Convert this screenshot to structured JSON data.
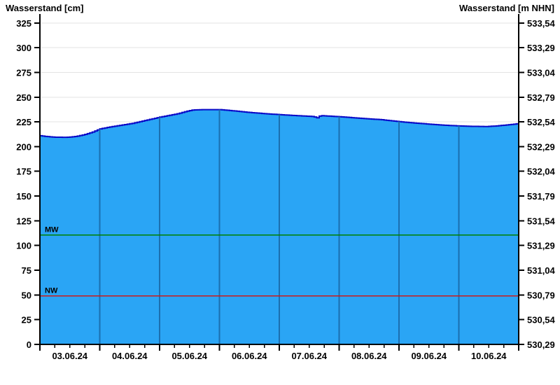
{
  "chart_data": {
    "type": "area",
    "title_left": "Wasserstand [cm]",
    "title_right": "Wasserstand [m NHN]",
    "x_axis": {
      "labels": [
        "03.06.24",
        "04.06.24",
        "05.06.24",
        "06.06.24",
        "07.06.24",
        "08.06.24",
        "09.06.24",
        "10.06.24"
      ],
      "days_shown": 8,
      "minor_ticks_per_day": 3
    },
    "y_left": {
      "label": "Wasserstand [cm]",
      "min": 0,
      "max": 325,
      "tick_step": 25,
      "ticks": [
        0,
        25,
        50,
        75,
        100,
        125,
        150,
        175,
        200,
        225,
        250,
        275,
        300,
        325
      ]
    },
    "y_right": {
      "label": "Wasserstand [m NHN]",
      "ticks": [
        "530,29",
        "530,54",
        "530,79",
        "531,04",
        "531,29",
        "531,54",
        "531,79",
        "532,04",
        "532,29",
        "532,54",
        "532,79",
        "533,04",
        "533,29",
        "533,54"
      ]
    },
    "series": [
      {
        "name": "Wasserstand",
        "unit": "cm",
        "points": [
          [
            0.0,
            211.0
          ],
          [
            0.1,
            210.2
          ],
          [
            0.25,
            209.5
          ],
          [
            0.45,
            209.4
          ],
          [
            0.6,
            210.3
          ],
          [
            0.75,
            212.3
          ],
          [
            0.88,
            214.8
          ],
          [
            1.0,
            217.9
          ],
          [
            1.15,
            219.7
          ],
          [
            1.35,
            221.6
          ],
          [
            1.55,
            223.6
          ],
          [
            1.75,
            226.4
          ],
          [
            1.9,
            228.4
          ],
          [
            2.0,
            229.8
          ],
          [
            2.15,
            231.5
          ],
          [
            2.3,
            233.3
          ],
          [
            2.45,
            235.8
          ],
          [
            2.55,
            237.0
          ],
          [
            2.7,
            237.4
          ],
          [
            3.0,
            237.4
          ],
          [
            3.15,
            236.6
          ],
          [
            3.3,
            235.7
          ],
          [
            3.5,
            234.5
          ],
          [
            3.75,
            233.3
          ],
          [
            4.0,
            232.3
          ],
          [
            4.25,
            231.4
          ],
          [
            4.5,
            230.6
          ],
          [
            4.57,
            230.3
          ],
          [
            4.62,
            228.9
          ],
          [
            4.68,
            231.4
          ],
          [
            4.8,
            230.9
          ],
          [
            5.0,
            230.2
          ],
          [
            5.2,
            229.3
          ],
          [
            5.45,
            228.2
          ],
          [
            5.7,
            227.2
          ],
          [
            6.0,
            225.2
          ],
          [
            6.2,
            224.1
          ],
          [
            6.5,
            222.7
          ],
          [
            6.75,
            221.6
          ],
          [
            7.0,
            220.9
          ],
          [
            7.2,
            220.5
          ],
          [
            7.45,
            220.3
          ],
          [
            7.6,
            220.8
          ],
          [
            7.8,
            221.9
          ],
          [
            8.0,
            223.3
          ]
        ]
      }
    ],
    "reference_lines": [
      {
        "label": "MW",
        "value_cm": 110.7,
        "color": "#008000"
      },
      {
        "label": "NW",
        "value_cm": 49.1,
        "color": "#cc1a1a"
      }
    ]
  },
  "colors": {
    "background": "#ffffff",
    "area_fill": "#2aa5f5",
    "curve_line": "#0a0ac8",
    "day_gridline": "#1b6fb0",
    "horizontal_gridline": "#e3e3e3",
    "axis": "#000000",
    "text": "#000000"
  }
}
